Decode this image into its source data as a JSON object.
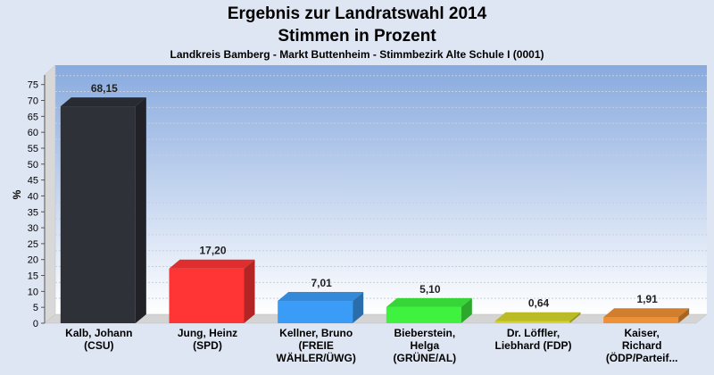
{
  "chart_data": {
    "type": "bar",
    "title_line1": "Ergebnis zur Landratswahl 2014",
    "title_line2": "Stimmen in Prozent",
    "subtitle": "Landkreis Bamberg - Markt Buttenheim - Stimmbezirk Alte Schule I (0001)",
    "ylabel": "%",
    "ylim": [
      0,
      78
    ],
    "yticks": [
      0,
      5,
      10,
      15,
      20,
      25,
      30,
      35,
      40,
      45,
      50,
      55,
      60,
      65,
      70,
      75
    ],
    "grid": true,
    "categories": [
      [
        "Kalb, Johann",
        "(CSU)"
      ],
      [
        "Jung, Heinz",
        "(SPD)"
      ],
      [
        "Kellner, Bruno",
        "(FREIE",
        "WÄHLER/ÜWG)"
      ],
      [
        "Bieberstein,",
        "Helga",
        "(GRÜNE/AL)"
      ],
      [
        "Dr. Löffler,",
        "Liebhard (FDP)"
      ],
      [
        "Kaiser,",
        "Richard",
        "(ÖDP/Parteif..."
      ]
    ],
    "values": [
      68.15,
      17.2,
      7.01,
      5.1,
      0.64,
      1.91
    ],
    "value_labels": [
      "68,15",
      "17,20",
      "7,01",
      "5,10",
      "0,64",
      "1,91"
    ],
    "colors": [
      "#2f3139",
      "#ff3434",
      "#3b9cf7",
      "#3ff23f",
      "#d4d42c",
      "#ee9035"
    ]
  }
}
